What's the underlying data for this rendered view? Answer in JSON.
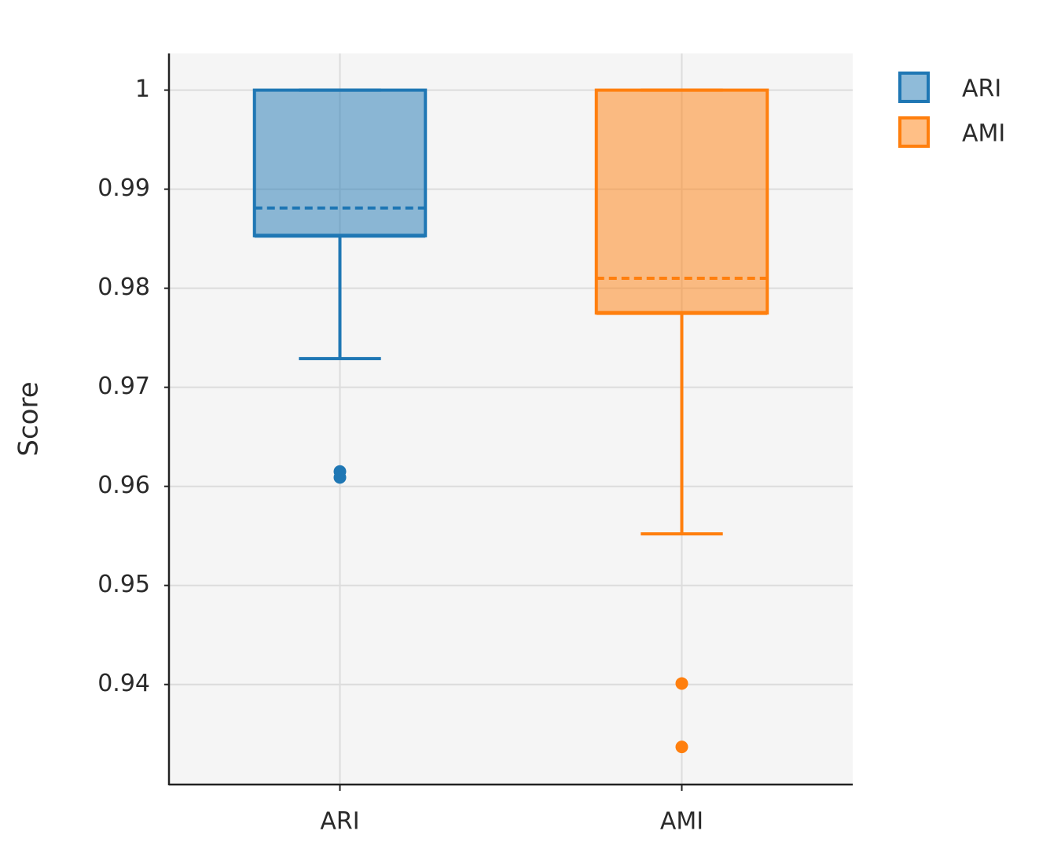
{
  "chart_data": {
    "type": "box",
    "y_label": "Score",
    "categories": [
      "ARI",
      "AMI"
    ],
    "series": [
      {
        "name": "ARI",
        "color": "#1f77b4",
        "min": 0.9729,
        "q1": 0.9853,
        "median": 0.9853,
        "q3": 1,
        "max": 1,
        "mean": 0.9881,
        "outliers": [
          0.9615,
          0.9609
        ]
      },
      {
        "name": "AMI",
        "color": "#ff7f0e",
        "min": 0.9552,
        "q1": 0.9775,
        "median": 0.9775,
        "q3": 1,
        "max": 1,
        "mean": 0.981,
        "outliers": [
          0.9401,
          0.9337
        ]
      }
    ],
    "ylim": [
      0.9299,
      1.0037
    ],
    "yticks": [
      0.94,
      0.95,
      0.96,
      0.97,
      0.98,
      0.99,
      1
    ],
    "grid": true,
    "legend": "right"
  }
}
